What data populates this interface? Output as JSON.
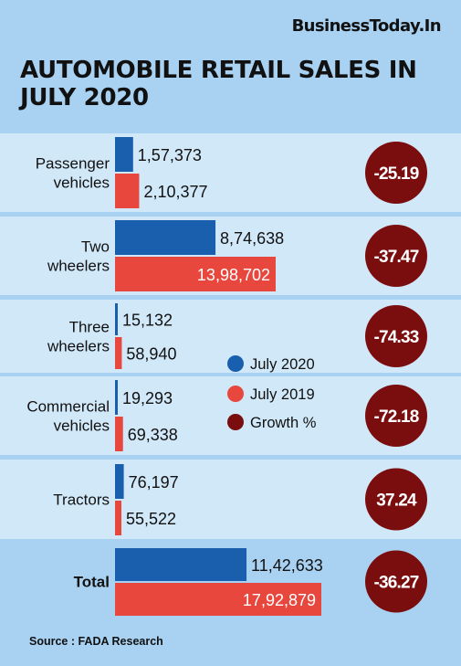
{
  "header": {
    "brand": "BusinessToday.In",
    "title": "AUTOMOBILE RETAIL SALES IN JULY 2020"
  },
  "footer": {
    "source": "Source : FADA Research"
  },
  "colors": {
    "july_2020": "#1a5fae",
    "july_2019": "#e8473d",
    "growth": "#7a0d0d",
    "background": "#a9d2f2",
    "row_fill": "#d1e8f9",
    "total_fill": "#a9d2f2"
  },
  "chart_data": {
    "type": "bar",
    "orientation": "horizontal",
    "categories": [
      [
        "Passenger",
        "vehicles"
      ],
      [
        "Two",
        "wheelers"
      ],
      [
        "Three",
        "wheelers"
      ],
      [
        "Commercial",
        "vehicles"
      ],
      [
        "Tractors"
      ],
      [
        "Total"
      ]
    ],
    "series": [
      {
        "name": "July 2020",
        "values": [
          157373,
          874638,
          15132,
          19293,
          76197,
          1142633
        ],
        "labels": [
          "1,57,373",
          "8,74,638",
          "15,132",
          "19,293",
          "76,197",
          "11,42,633"
        ]
      },
      {
        "name": "July 2019",
        "values": [
          210377,
          1398702,
          58940,
          69338,
          55522,
          1792879
        ],
        "labels": [
          "2,10,377",
          "13,98,702",
          "58,940",
          "69,338",
          "55,522",
          "17,92,879"
        ]
      }
    ],
    "growth": {
      "name": "Growth %",
      "values": [
        -25.19,
        -37.47,
        -74.33,
        -72.18,
        37.24,
        -36.27
      ],
      "labels": [
        "-25.19",
        "-37.47",
        "-74.33",
        "-72.18",
        "37.24",
        "-36.27"
      ]
    },
    "legend": {
      "placement": "center",
      "entries": [
        "July 2020",
        "July 2019",
        "Growth %"
      ]
    },
    "grid": false
  }
}
